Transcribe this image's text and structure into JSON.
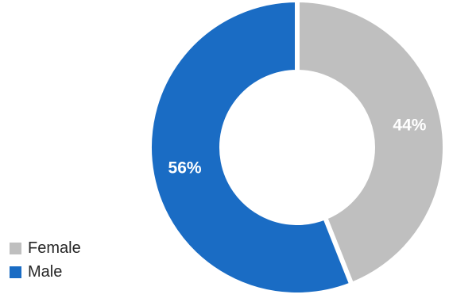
{
  "chart_data": {
    "type": "pie",
    "donut": true,
    "categories": [
      "Female",
      "Male"
    ],
    "values": [
      44,
      56
    ],
    "labels": [
      "44%",
      "56%"
    ],
    "colors": [
      "#bfbfbf",
      "#1a6cc4"
    ],
    "legend_position": "bottom-left",
    "title": ""
  }
}
